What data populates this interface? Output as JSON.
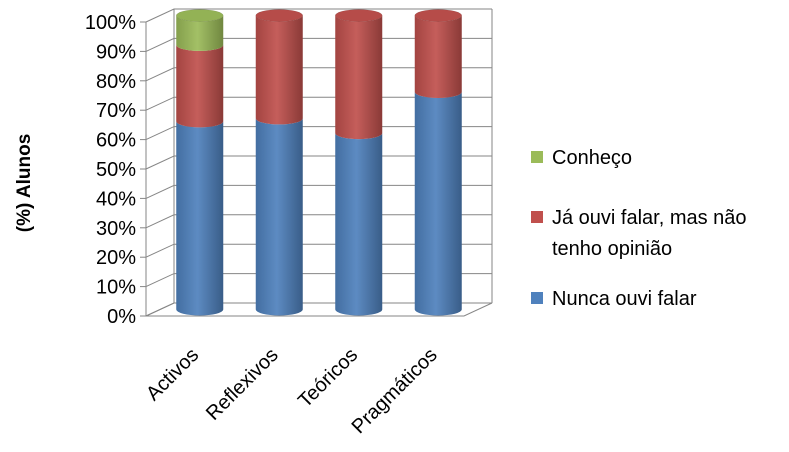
{
  "chart_data": {
    "type": "bar",
    "stacked": true,
    "style": "3d-cylinder",
    "categories": [
      "Activos",
      "Reflexivos",
      "Teóricos",
      "Pragmáticos"
    ],
    "series": [
      {
        "name": "Nunca ouvi falar",
        "color": "#4f81bd",
        "values": [
          64,
          65,
          60,
          74
        ]
      },
      {
        "name": "Já ouvi falar, mas não tenho opinião",
        "color": "#c0504d",
        "values": [
          26,
          35,
          40,
          26
        ]
      },
      {
        "name": "Conheço",
        "color": "#9bbb59",
        "values": [
          10,
          0,
          0,
          0
        ]
      }
    ],
    "ylabel": "(%) Alunos",
    "xlabel": "",
    "ylim": [
      0,
      100
    ],
    "yticks": [
      "0%",
      "10%",
      "20%",
      "30%",
      "40%",
      "50%",
      "60%",
      "70%",
      "80%",
      "90%",
      "100%"
    ],
    "grid": true,
    "legend_position": "right",
    "legend": [
      {
        "label": "Conheço",
        "color": "#9bbb59"
      },
      {
        "label_lines": [
          "Já ouvi falar, mas não",
          "tenho opinião"
        ],
        "color": "#c0504d"
      },
      {
        "label": "Nunca ouvi falar",
        "color": "#4f81bd"
      }
    ]
  }
}
